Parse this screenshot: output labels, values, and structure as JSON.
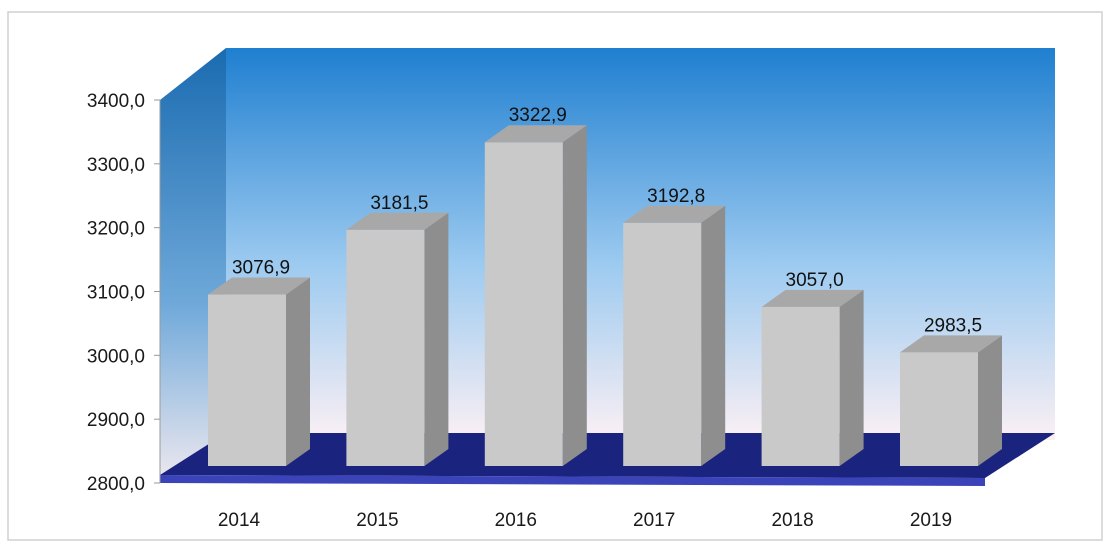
{
  "chart_data": {
    "type": "bar",
    "style": "3d",
    "title": "",
    "xlabel": "",
    "ylabel": "",
    "categories": [
      "2014",
      "2015",
      "2016",
      "2017",
      "2018",
      "2019"
    ],
    "values": [
      3076.9,
      3181.5,
      3322.9,
      3192.8,
      3057.0,
      2983.5
    ],
    "value_labels": [
      "3076,9",
      "3181,5",
      "3322,9",
      "3192,8",
      "3057,0",
      "2983,5"
    ],
    "ylim": [
      2800,
      3400
    ],
    "y_ticks": [
      2800,
      2900,
      3000,
      3100,
      3200,
      3300,
      3400
    ],
    "y_tick_labels": [
      "2800,0",
      "2900,0",
      "3000,0",
      "3100,0",
      "3200,0",
      "3300,0",
      "3400,0"
    ],
    "grid": false,
    "legend": "none",
    "colors": {
      "bar_front": "#c9c9c9",
      "bar_side": "#8e8e8e",
      "bar_top": "#a8a8a8",
      "back_wall_top": "#1f7fd0",
      "back_wall_bottom": "#fbf0f4",
      "side_wall": "#1b6fb3",
      "floor_top": "#1a237e",
      "floor_front": "#3a44b8"
    }
  }
}
